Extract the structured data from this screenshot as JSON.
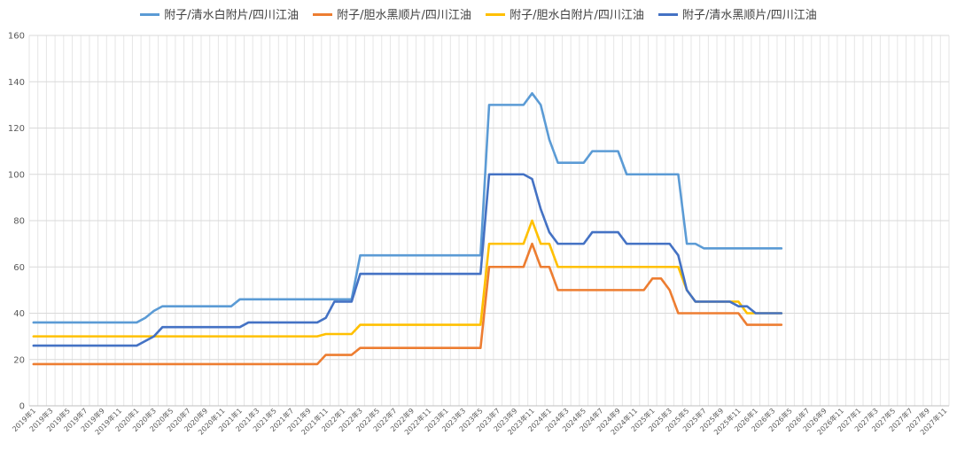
{
  "chart_data": {
    "type": "line",
    "legend_position": "top",
    "grid": true,
    "ylim": [
      0,
      160
    ],
    "yticks": [
      0,
      20,
      40,
      60,
      80,
      100,
      120,
      140,
      160
    ],
    "x_labels": [
      "2019年1",
      "2019年3",
      "2019年5",
      "2019年7",
      "2019年9",
      "2019年11",
      "2020年1",
      "2020年3",
      "2020年5",
      "2020年7",
      "2020年9",
      "2020年11",
      "2021年1",
      "2021年3",
      "2021年5",
      "2021年7",
      "2021年9",
      "2021年11",
      "2022年1",
      "2022年3",
      "2022年5",
      "2022年7",
      "2022年9",
      "2022年11",
      "2023年1",
      "2023年3",
      "2023年5",
      "2023年7",
      "2023年9",
      "2023年11",
      "2024年1",
      "2024年3",
      "2024年5",
      "2024年7",
      "2024年9",
      "2024年11",
      "2025年1",
      "2025年3",
      "2025年5",
      "2025年7",
      "2025年9",
      "2025年11",
      "2026年1",
      "2026年3",
      "2026年5",
      "2026年7",
      "2026年9",
      "2026年11",
      "2027年1",
      "2027年3",
      "2027年5",
      "2027年7",
      "2027年9",
      "2027年11"
    ],
    "series": [
      {
        "name": "附子/清水白附片/四川江油",
        "color": "#5B9BD5",
        "points": [
          [
            0,
            36
          ],
          [
            12,
            36
          ],
          [
            13,
            38
          ],
          [
            14,
            41
          ],
          [
            15,
            43
          ],
          [
            23,
            43
          ],
          [
            24,
            46
          ],
          [
            36,
            46
          ],
          [
            37,
            46
          ],
          [
            38,
            65
          ],
          [
            52,
            65
          ],
          [
            53,
            130
          ],
          [
            57,
            130
          ],
          [
            58,
            135
          ],
          [
            59,
            130
          ],
          [
            60,
            115
          ],
          [
            61,
            105
          ],
          [
            64,
            105
          ],
          [
            65,
            110
          ],
          [
            68,
            110
          ],
          [
            69,
            100
          ],
          [
            74,
            100
          ],
          [
            75,
            100
          ],
          [
            76,
            70
          ],
          [
            77,
            70
          ],
          [
            78,
            68
          ],
          [
            87,
            68
          ]
        ]
      },
      {
        "name": "附子/胆水黑顺片/四川江油",
        "color": "#ED7D31",
        "points": [
          [
            0,
            18
          ],
          [
            33,
            18
          ],
          [
            34,
            22
          ],
          [
            37,
            22
          ],
          [
            38,
            25
          ],
          [
            52,
            25
          ],
          [
            53,
            60
          ],
          [
            57,
            60
          ],
          [
            58,
            70
          ],
          [
            59,
            60
          ],
          [
            60,
            60
          ],
          [
            61,
            50
          ],
          [
            71,
            50
          ],
          [
            72,
            55
          ],
          [
            73,
            55
          ],
          [
            74,
            50
          ],
          [
            75,
            40
          ],
          [
            82,
            40
          ],
          [
            83,
            35
          ],
          [
            87,
            35
          ]
        ]
      },
      {
        "name": "附子/胆水白附片/四川江油",
        "color": "#FFC000",
        "points": [
          [
            0,
            30
          ],
          [
            33,
            30
          ],
          [
            34,
            31
          ],
          [
            37,
            31
          ],
          [
            38,
            35
          ],
          [
            52,
            35
          ],
          [
            53,
            70
          ],
          [
            57,
            70
          ],
          [
            58,
            80
          ],
          [
            59,
            70
          ],
          [
            60,
            70
          ],
          [
            61,
            60
          ],
          [
            75,
            60
          ],
          [
            76,
            50
          ],
          [
            77,
            45
          ],
          [
            81,
            45
          ],
          [
            82,
            45
          ],
          [
            83,
            40
          ],
          [
            87,
            40
          ]
        ]
      },
      {
        "name": "附子/清水黑顺片/四川江油",
        "color": "#4472C4",
        "points": [
          [
            0,
            26
          ],
          [
            12,
            26
          ],
          [
            13,
            28
          ],
          [
            14,
            30
          ],
          [
            15,
            34
          ],
          [
            24,
            34
          ],
          [
            25,
            36
          ],
          [
            33,
            36
          ],
          [
            34,
            38
          ],
          [
            35,
            45
          ],
          [
            37,
            45
          ],
          [
            38,
            57
          ],
          [
            52,
            57
          ],
          [
            53,
            100
          ],
          [
            57,
            100
          ],
          [
            58,
            98
          ],
          [
            59,
            85
          ],
          [
            60,
            75
          ],
          [
            61,
            70
          ],
          [
            64,
            70
          ],
          [
            65,
            75
          ],
          [
            68,
            75
          ],
          [
            69,
            70
          ],
          [
            74,
            70
          ],
          [
            75,
            65
          ],
          [
            76,
            50
          ],
          [
            77,
            45
          ],
          [
            81,
            45
          ],
          [
            82,
            43
          ],
          [
            83,
            43
          ],
          [
            84,
            40
          ],
          [
            87,
            40
          ]
        ]
      }
    ]
  }
}
